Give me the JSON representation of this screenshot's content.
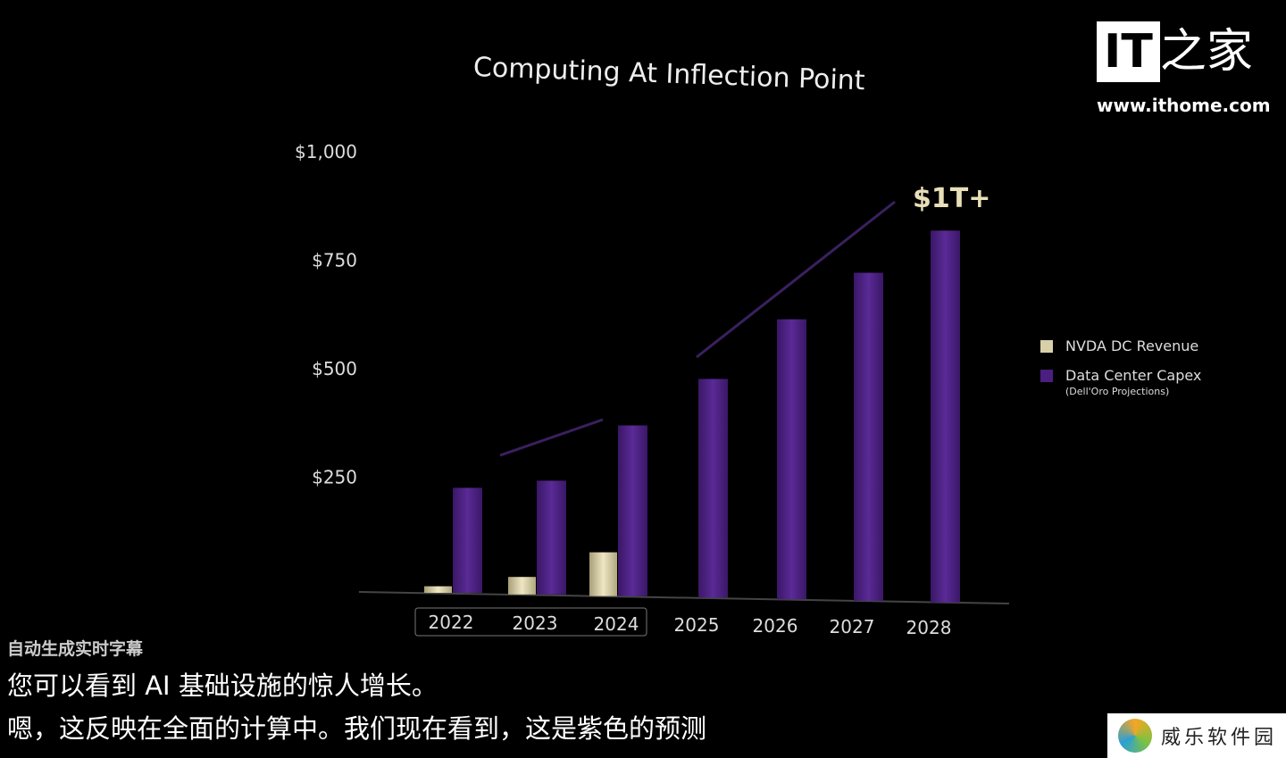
{
  "title": "Computing At Inflection Point",
  "chart_data": {
    "type": "bar",
    "title": "Computing At Inflection Point",
    "categories": [
      "2022",
      "2023",
      "2024",
      "2025",
      "2026",
      "2027",
      "2028"
    ],
    "highlighted_categories": [
      "2022",
      "2023",
      "2024"
    ],
    "yticks": [
      "$1,000",
      "$750",
      "$500",
      "$250"
    ],
    "ylim": [
      0,
      1000
    ],
    "series": [
      {
        "name": "NVDA DC Revenue",
        "color": "#d8d0a8",
        "values": [
          15,
          40,
          100,
          null,
          null,
          null,
          null
        ]
      },
      {
        "name": "Data Center Capex",
        "note": "(Dell'Oro Projections)",
        "color": "#4a1f80",
        "values": [
          240,
          260,
          390,
          500,
          640,
          750,
          850
        ]
      }
    ],
    "annotation": "$1T+",
    "legend_position": "right",
    "grid": false
  },
  "logo": {
    "it": "IT",
    "cn": "之家",
    "url": "www.ithome.com"
  },
  "subtitles": {
    "auto_label": "自动生成实时字幕",
    "line1": "您可以看到 AI 基础设施的惊人增长。",
    "line2": "嗯，这反映在全面的计算中。我们现在看到，这是紫色的预测"
  },
  "watermark": "威乐软件园"
}
